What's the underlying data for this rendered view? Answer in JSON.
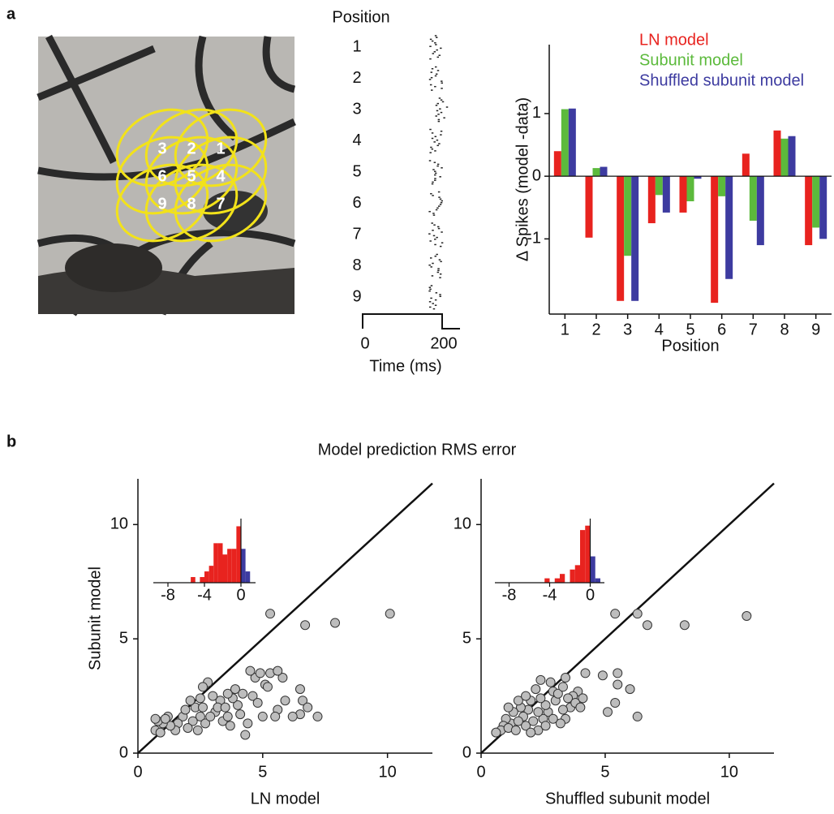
{
  "panel_labels": [
    "a",
    "b"
  ],
  "image": {
    "labels": [
      "3",
      "2",
      "1",
      "6",
      "5",
      "4",
      "9",
      "8",
      "7"
    ]
  },
  "raster": {
    "title": "Position",
    "rows": [
      "1",
      "2",
      "3",
      "4",
      "5",
      "6",
      "7",
      "8",
      "9"
    ],
    "xticks": [
      0,
      200
    ],
    "xlabel": "Time (ms)"
  },
  "figure_title": "Model prediction RMS error",
  "chart_data": [
    {
      "type": "bar",
      "ylabel": "Δ Spikes (model -data)",
      "xlabel": "Position",
      "categories": [
        "1",
        "2",
        "3",
        "4",
        "5",
        "6",
        "7",
        "8",
        "9"
      ],
      "series": [
        {
          "name": "LN model",
          "color": "#e8231f",
          "values": [
            0.4,
            -0.98,
            -1.99,
            -0.75,
            -0.58,
            -2.02,
            0.36,
            0.73,
            -1.1
          ]
        },
        {
          "name": "Subunit model",
          "color": "#5cba3c",
          "values": [
            1.07,
            0.13,
            -1.27,
            -0.3,
            -0.4,
            -0.32,
            -0.71,
            0.6,
            -0.82
          ]
        },
        {
          "name": "Shuffled subunit model",
          "color": "#3d3ba0",
          "values": [
            1.08,
            0.15,
            -1.99,
            -0.58,
            -0.04,
            -1.64,
            -1.1,
            0.64,
            -1.0
          ]
        }
      ],
      "ylim": [
        -2.2,
        2.1
      ],
      "yticks": [
        -1,
        0,
        1
      ],
      "legend": "top"
    },
    {
      "type": "scatter",
      "xlabel": "LN model",
      "ylabel": "Subunit model",
      "color": "#bdbdbd",
      "diagonal": true,
      "x": [
        5.3,
        6.7,
        7.9,
        10.1,
        7.2,
        6.5,
        6.6,
        6.8,
        6.5,
        6.2,
        5.6,
        5.9,
        5.8,
        5.1,
        5.2,
        5.3,
        5.6,
        4.7,
        4.9,
        4.5,
        4.6,
        4.8,
        5.0,
        5.5,
        4.3,
        4.4,
        4.1,
        4.0,
        3.8,
        3.6,
        3.3,
        3.1,
        3.4,
        3.6,
        3.2,
        3.0,
        2.8,
        2.6,
        2.5,
        2.3,
        2.5,
        2.7,
        2.9,
        2.2,
        2.0,
        1.8,
        1.9,
        1.6,
        1.5,
        1.3,
        1.2,
        1.0,
        0.8,
        0.7,
        0.9,
        0.7,
        1.1,
        2.4,
        2.1,
        3.7,
        3.9,
        4.2,
        3.5,
        2.6
      ],
      "values": [
        6.1,
        5.6,
        5.7,
        6.1,
        1.6,
        2.8,
        2.3,
        2.0,
        1.7,
        1.6,
        1.9,
        2.3,
        3.3,
        3.0,
        2.9,
        3.5,
        3.6,
        3.3,
        3.5,
        3.6,
        2.5,
        2.2,
        1.6,
        1.6,
        0.8,
        1.3,
        1.7,
        2.1,
        2.4,
        2.6,
        2.3,
        1.8,
        1.4,
        1.6,
        2.0,
        2.5,
        3.1,
        2.9,
        2.4,
        2.0,
        1.6,
        1.3,
        1.6,
        1.4,
        1.1,
        1.6,
        1.9,
        1.3,
        1.0,
        1.2,
        1.6,
        1.3,
        1.4,
        1.0,
        0.9,
        1.5,
        1.5,
        1.0,
        2.3,
        1.2,
        2.8,
        2.6,
        2.0,
        2.0
      ],
      "xlim": [
        0,
        11.8
      ],
      "ylim": [
        0,
        12
      ],
      "xticks": [
        0,
        5,
        10
      ],
      "yticks": [
        0,
        5,
        10
      ]
    },
    {
      "type": "scatter",
      "xlabel": "Shuffled subunit model",
      "color": "#bdbdbd",
      "diagonal": true,
      "x": [
        5.4,
        6.3,
        6.7,
        8.2,
        10.7,
        6.3,
        6.0,
        5.5,
        5.5,
        5.4,
        4.9,
        5.1,
        4.2,
        3.9,
        3.7,
        3.5,
        3.6,
        3.3,
        3.4,
        3.0,
        2.9,
        2.8,
        3.1,
        2.7,
        2.5,
        2.6,
        2.4,
        2.2,
        2.0,
        1.9,
        1.7,
        1.6,
        1.5,
        1.3,
        1.2,
        1.0,
        0.9,
        0.8,
        0.6,
        1.1,
        1.4,
        1.8,
        2.1,
        2.3,
        2.0,
        2.6,
        3.2,
        1.5,
        1.8,
        2.3,
        3.8,
        4.0,
        3.4,
        3.3,
        2.9,
        1.1,
        2.4,
        4.1
      ],
      "values": [
        6.1,
        6.1,
        5.6,
        5.6,
        6.0,
        1.6,
        2.8,
        3.5,
        3.0,
        2.2,
        3.4,
        1.8,
        3.5,
        2.7,
        2.5,
        2.4,
        2.0,
        1.9,
        1.5,
        2.3,
        2.7,
        3.1,
        2.6,
        1.8,
        1.5,
        2.1,
        2.4,
        2.8,
        2.3,
        1.9,
        1.6,
        2.0,
        2.3,
        1.8,
        1.3,
        1.5,
        1.2,
        1.0,
        0.9,
        1.1,
        1.0,
        1.2,
        1.4,
        1.0,
        0.9,
        1.2,
        1.3,
        1.4,
        2.5,
        1.8,
        2.2,
        2.0,
        3.3,
        2.9,
        1.5,
        2.0,
        3.2,
        2.4
      ],
      "xlim": [
        0,
        11.8
      ],
      "ylim": [
        0,
        12
      ],
      "xticks": [
        0,
        5,
        10
      ],
      "yticks": [
        0,
        5,
        10
      ]
    },
    {
      "type": "histogram",
      "series": [
        {
          "color": "#e8231f",
          "bins": [
            -5.5,
            -5,
            -4.5,
            -4,
            -3.5,
            -3,
            -2.5,
            -2,
            -1.5,
            -1,
            -0.5,
            0
          ],
          "values": [
            1,
            0,
            1,
            2,
            3,
            7,
            7,
            5,
            6,
            6,
            10
          ]
        },
        {
          "color": "#3d3ba0",
          "bins": [
            0,
            0.5,
            1
          ],
          "values": [
            6,
            2
          ]
        }
      ],
      "xlim": [
        -9.6,
        1.6
      ],
      "ylim": [
        0,
        10.5
      ],
      "xticks": [
        -8,
        -4,
        0
      ]
    },
    {
      "type": "histogram",
      "series": [
        {
          "color": "#e8231f",
          "bins": [
            -4.5,
            -4,
            -3.5,
            -3,
            -2.5,
            -2,
            -1.5,
            -1,
            -0.5,
            0
          ],
          "values": [
            1,
            0,
            1,
            2,
            0,
            3,
            4,
            12,
            13
          ]
        },
        {
          "color": "#3d3ba0",
          "bins": [
            0,
            0.5,
            1
          ],
          "values": [
            6,
            1
          ]
        }
      ],
      "xlim": [
        -9.4,
        1.4
      ],
      "ylim": [
        0,
        13.5
      ],
      "xticks": [
        -8,
        -4,
        0
      ]
    }
  ]
}
